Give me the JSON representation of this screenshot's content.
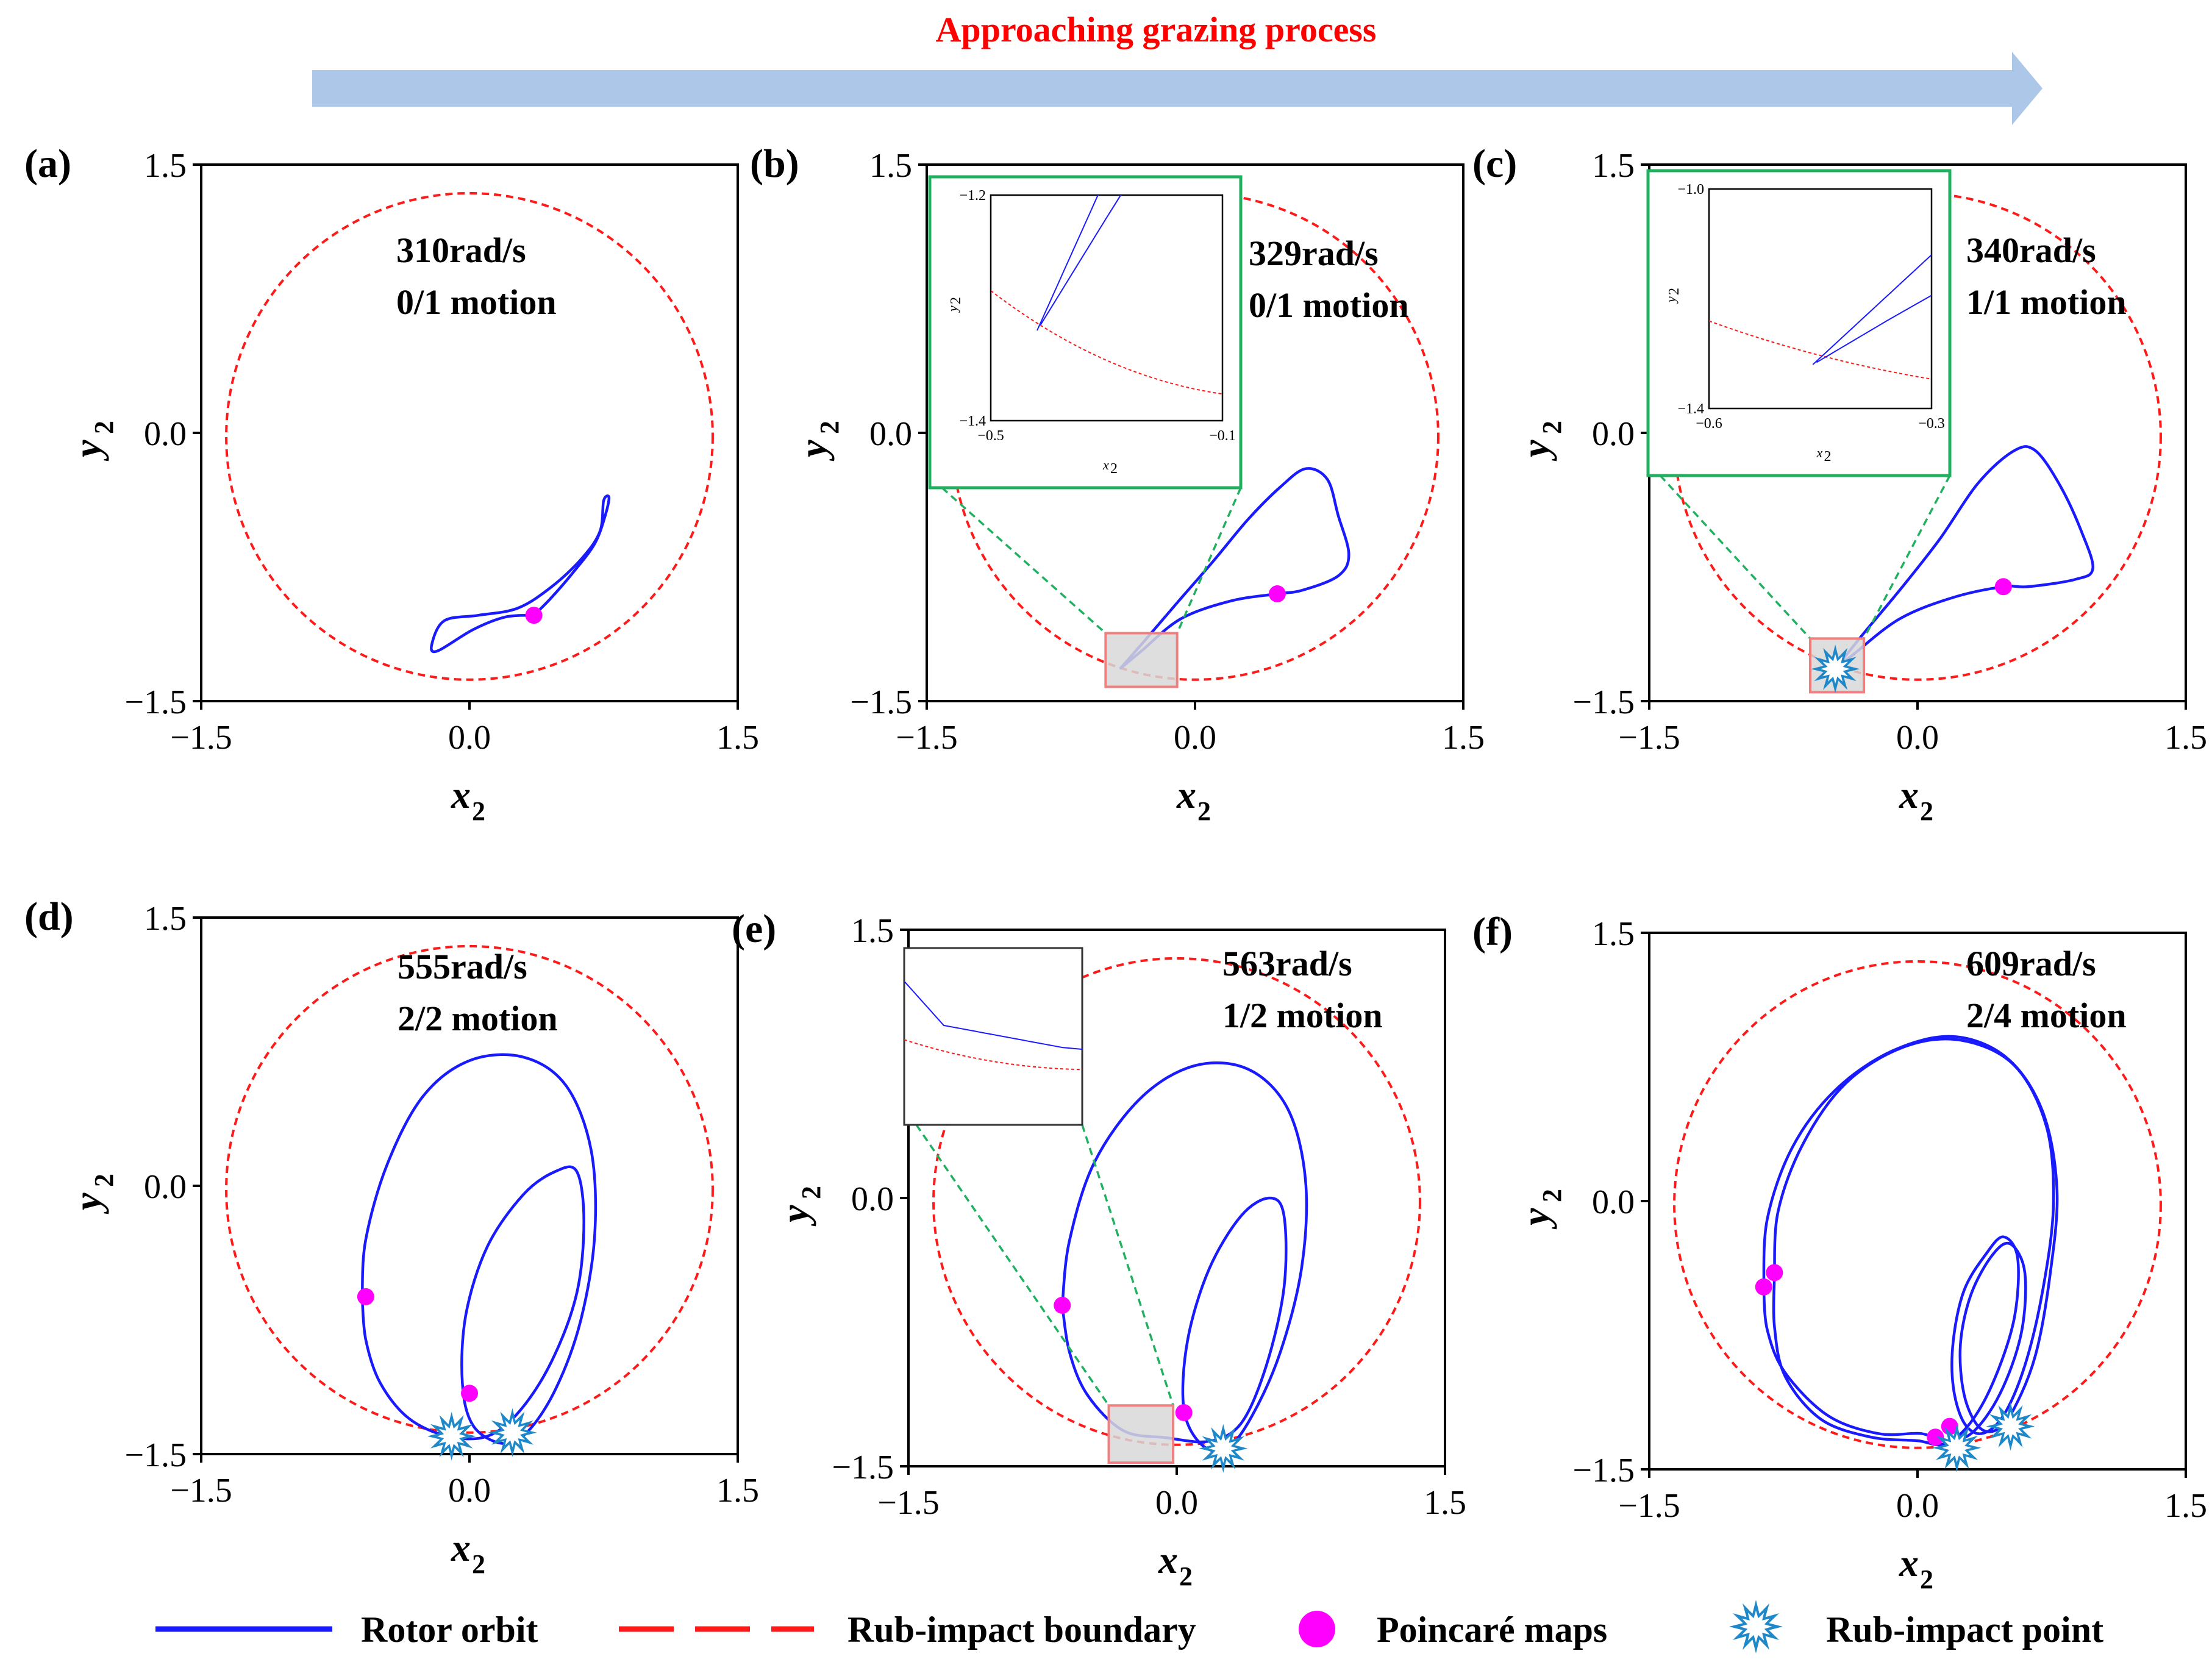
{
  "header": {
    "title": "Approaching grazing process"
  },
  "colors": {
    "orbit": "#1a1aff",
    "boundary": "#ff1a1a",
    "poincare": "#ff00ff",
    "impact": "#1e88c8",
    "arrow": "#adc7e8",
    "zoom_green": "#20b060",
    "zoom_red": "#f08080"
  },
  "legend": {
    "orbit": "Rotor orbit",
    "boundary": "Rub-impact boundary",
    "poincare": "Poincaré maps",
    "impact": "Rub-impact point"
  },
  "chart_data": [
    {
      "type": "line",
      "panel": "(a)",
      "speed": "310rad/s",
      "motion": "0/1 motion",
      "xlabel": "x",
      "xlabel_sub": "2",
      "ylabel": "y",
      "ylabel_sub": "2",
      "xlim": [
        -1.5,
        1.5
      ],
      "ylim": [
        -1.5,
        1.5
      ],
      "xticks": [
        "−1.5",
        "0.0",
        "1.5"
      ],
      "yticks": [
        "1.5",
        "0.0",
        "−1.5"
      ],
      "boundary": {
        "cx": 0.0,
        "cy": -0.02,
        "r": 1.36
      },
      "orbit": [
        [
          0.36,
          -1.02
        ],
        [
          0.45,
          -0.93
        ],
        [
          0.58,
          -0.78
        ],
        [
          0.7,
          -0.62
        ],
        [
          0.76,
          -0.46
        ],
        [
          0.78,
          -0.36
        ],
        [
          0.75,
          -0.38
        ],
        [
          0.73,
          -0.55
        ],
        [
          0.63,
          -0.7
        ],
        [
          0.46,
          -0.86
        ],
        [
          0.27,
          -0.98
        ],
        [
          0.05,
          -1.02
        ],
        [
          -0.14,
          -1.05
        ],
        [
          -0.21,
          -1.18
        ],
        [
          -0.18,
          -1.22
        ],
        [
          0.02,
          -1.1
        ],
        [
          0.2,
          -1.03
        ],
        [
          0.36,
          -1.02
        ]
      ],
      "poincare": [
        [
          0.36,
          -1.02
        ]
      ],
      "impacts": []
    },
    {
      "type": "line",
      "panel": "(b)",
      "speed": "329rad/s",
      "motion": "0/1 motion",
      "xlabel": "x",
      "xlabel_sub": "2",
      "ylabel": "y",
      "ylabel_sub": "2",
      "xlim": [
        -1.5,
        1.5
      ],
      "ylim": [
        -1.5,
        1.5
      ],
      "xticks": [
        "−1.5",
        "0.0",
        "1.5"
      ],
      "yticks": [
        "1.5",
        "0.0",
        "−1.5"
      ],
      "boundary": {
        "cx": 0.0,
        "cy": -0.02,
        "r": 1.36
      },
      "orbit": [
        [
          -0.42,
          -1.32
        ],
        [
          -0.28,
          -1.16
        ],
        [
          -0.1,
          -0.95
        ],
        [
          0.1,
          -0.72
        ],
        [
          0.3,
          -0.48
        ],
        [
          0.48,
          -0.3
        ],
        [
          0.62,
          -0.2
        ],
        [
          0.74,
          -0.26
        ],
        [
          0.8,
          -0.46
        ],
        [
          0.86,
          -0.68
        ],
        [
          0.8,
          -0.8
        ],
        [
          0.6,
          -0.88
        ],
        [
          0.46,
          -0.9
        ],
        [
          0.2,
          -0.94
        ],
        [
          -0.08,
          -1.04
        ],
        [
          -0.3,
          -1.22
        ],
        [
          -0.42,
          -1.32
        ]
      ],
      "poincare": [
        [
          0.46,
          -0.9
        ]
      ],
      "impacts": [],
      "zoom_box": {
        "x": [
          -0.5,
          -0.1
        ],
        "y": [
          -1.42,
          -1.12
        ]
      },
      "inset": {
        "frame": "green",
        "xlim": [
          -0.5,
          -0.1
        ],
        "ylim": [
          -1.4,
          -1.2
        ],
        "xticks": [
          "−0.5",
          "−0.1"
        ],
        "yticks": [
          "−1.2",
          "−1.4"
        ],
        "xlabel": "x",
        "xlabel_sub": "2",
        "ylabel": "y",
        "ylabel_sub": "2"
      }
    },
    {
      "type": "line",
      "panel": "(c)",
      "speed": "340rad/s",
      "motion": "1/1 motion",
      "xlabel": "x",
      "xlabel_sub": "2",
      "ylabel": "y",
      "ylabel_sub": "2",
      "xlim": [
        -1.5,
        1.5
      ],
      "ylim": [
        -1.5,
        1.5
      ],
      "xticks": [
        "−1.5",
        "0.0",
        "1.5"
      ],
      "yticks": [
        "1.5",
        "0.0",
        "−1.5"
      ],
      "boundary": {
        "cx": 0.0,
        "cy": -0.02,
        "r": 1.36
      },
      "orbit": [
        [
          -0.46,
          -1.32
        ],
        [
          -0.3,
          -1.12
        ],
        [
          -0.1,
          -0.88
        ],
        [
          0.12,
          -0.6
        ],
        [
          0.34,
          -0.28
        ],
        [
          0.54,
          -0.1
        ],
        [
          0.66,
          -0.1
        ],
        [
          0.8,
          -0.3
        ],
        [
          0.92,
          -0.56
        ],
        [
          0.98,
          -0.76
        ],
        [
          0.88,
          -0.82
        ],
        [
          0.62,
          -0.86
        ],
        [
          0.48,
          -0.86
        ],
        [
          0.2,
          -0.92
        ],
        [
          -0.1,
          -1.04
        ],
        [
          -0.36,
          -1.24
        ],
        [
          -0.46,
          -1.32
        ]
      ],
      "poincare": [
        [
          0.48,
          -0.86
        ]
      ],
      "impacts": [
        [
          -0.46,
          -1.32
        ]
      ],
      "zoom_box": {
        "x": [
          -0.6,
          -0.3
        ],
        "y": [
          -1.45,
          -1.15
        ]
      },
      "inset": {
        "frame": "green",
        "xlim": [
          -0.6,
          -0.3
        ],
        "ylim": [
          -1.4,
          -1.0
        ],
        "xticks": [
          "−0.6",
          "−0.3"
        ],
        "yticks": [
          "−1.0",
          "−1.4"
        ],
        "xlabel": "x",
        "xlabel_sub": "2",
        "ylabel": "y",
        "ylabel_sub": "2"
      }
    },
    {
      "type": "line",
      "panel": "(d)",
      "speed": "555rad/s",
      "motion": "2/2 motion",
      "xlabel": "x",
      "xlabel_sub": "2",
      "ylabel": "y",
      "ylabel_sub": "2",
      "xlim": [
        -1.5,
        1.5
      ],
      "ylim": [
        -1.5,
        1.5
      ],
      "xticks": [
        "−1.5",
        "0.0",
        "1.5"
      ],
      "yticks": [
        "1.5",
        "0.0",
        "−1.5"
      ],
      "boundary": {
        "cx": 0.0,
        "cy": -0.02,
        "r": 1.36
      },
      "orbit": [
        [
          -0.6,
          -0.62
        ],
        [
          -0.58,
          -0.3
        ],
        [
          -0.46,
          0.12
        ],
        [
          -0.26,
          0.5
        ],
        [
          0.0,
          0.7
        ],
        [
          0.3,
          0.72
        ],
        [
          0.54,
          0.56
        ],
        [
          0.68,
          0.2
        ],
        [
          0.7,
          -0.28
        ],
        [
          0.62,
          -0.76
        ],
        [
          0.48,
          -1.14
        ],
        [
          0.32,
          -1.38
        ],
        [
          0.18,
          -1.44
        ],
        [
          0.02,
          -1.34
        ],
        [
          -0.04,
          -1.1
        ],
        [
          -0.02,
          -0.72
        ],
        [
          0.1,
          -0.34
        ],
        [
          0.3,
          -0.05
        ],
        [
          0.48,
          0.08
        ],
        [
          0.6,
          0.08
        ],
        [
          0.64,
          -0.2
        ],
        [
          0.6,
          -0.6
        ],
        [
          0.46,
          -0.98
        ],
        [
          0.28,
          -1.26
        ],
        [
          0.1,
          -1.4
        ],
        [
          -0.12,
          -1.4
        ],
        [
          -0.34,
          -1.3
        ],
        [
          -0.5,
          -1.1
        ],
        [
          -0.58,
          -0.86
        ],
        [
          -0.6,
          -0.62
        ]
      ],
      "poincare": [
        [
          -0.58,
          -0.62
        ],
        [
          0.0,
          -1.16
        ]
      ],
      "impacts": [
        [
          -0.1,
          -1.4
        ],
        [
          0.24,
          -1.38
        ]
      ]
    },
    {
      "type": "line",
      "panel": "(e)",
      "speed": "563rad/s",
      "motion": "1/2 motion",
      "xlabel": "x",
      "xlabel_sub": "2",
      "ylabel": "y",
      "ylabel_sub": "2",
      "xlim": [
        -1.5,
        1.5
      ],
      "ylim": [
        -1.5,
        1.5
      ],
      "xticks": [
        "−1.5",
        "0.0",
        "1.5"
      ],
      "yticks": [
        "1.5",
        "0.0",
        "−1.5"
      ],
      "boundary": {
        "cx": 0.0,
        "cy": -0.02,
        "r": 1.36
      },
      "orbit": [
        [
          -0.64,
          -0.6
        ],
        [
          -0.6,
          -0.24
        ],
        [
          -0.46,
          0.2
        ],
        [
          -0.2,
          0.56
        ],
        [
          0.1,
          0.74
        ],
        [
          0.4,
          0.72
        ],
        [
          0.62,
          0.5
        ],
        [
          0.72,
          0.1
        ],
        [
          0.7,
          -0.38
        ],
        [
          0.58,
          -0.86
        ],
        [
          0.42,
          -1.22
        ],
        [
          0.28,
          -1.4
        ],
        [
          0.14,
          -1.38
        ],
        [
          0.04,
          -1.18
        ],
        [
          0.06,
          -0.8
        ],
        [
          0.18,
          -0.4
        ],
        [
          0.36,
          -0.1
        ],
        [
          0.52,
          0.0
        ],
        [
          0.6,
          -0.1
        ],
        [
          0.6,
          -0.5
        ],
        [
          0.5,
          -0.94
        ],
        [
          0.36,
          -1.26
        ],
        [
          0.18,
          -1.36
        ],
        [
          -0.06,
          -1.34
        ],
        [
          -0.3,
          -1.3
        ],
        [
          -0.5,
          -1.1
        ],
        [
          -0.6,
          -0.86
        ],
        [
          -0.64,
          -0.6
        ]
      ],
      "poincare": [
        [
          -0.64,
          -0.6
        ],
        [
          0.04,
          -1.2
        ]
      ],
      "impacts": [
        [
          0.26,
          -1.4
        ]
      ],
      "zoom_box": {
        "x": [
          -0.38,
          -0.02
        ],
        "y": [
          -1.48,
          -1.16
        ]
      },
      "inset": {
        "frame": "gray",
        "xlim": [
          -0.38,
          -0.02
        ],
        "ylim": [
          -1.48,
          -1.16
        ],
        "xticks": [],
        "yticks": [],
        "xlabel": "",
        "xlabel_sub": "",
        "ylabel": "",
        "ylabel_sub": ""
      }
    },
    {
      "type": "line",
      "panel": "(f)",
      "speed": "609rad/s",
      "motion": "2/4 motion",
      "xlabel": "x",
      "xlabel_sub": "2",
      "ylabel": "y",
      "ylabel_sub": "2",
      "xlim": [
        -1.5,
        1.5
      ],
      "ylim": [
        -1.5,
        1.5
      ],
      "xticks": [
        "−1.5",
        "0.0",
        "1.5"
      ],
      "yticks": [
        "1.5",
        "0.0",
        "−1.5"
      ],
      "boundary": {
        "cx": 0.0,
        "cy": -0.02,
        "r": 1.36
      },
      "orbit": [
        [
          -0.86,
          -0.48
        ],
        [
          -0.84,
          -0.1
        ],
        [
          -0.7,
          0.3
        ],
        [
          -0.46,
          0.62
        ],
        [
          -0.14,
          0.84
        ],
        [
          0.2,
          0.92
        ],
        [
          0.5,
          0.8
        ],
        [
          0.7,
          0.5
        ],
        [
          0.78,
          0.06
        ],
        [
          0.74,
          -0.42
        ],
        [
          0.66,
          -0.86
        ],
        [
          0.54,
          -1.16
        ],
        [
          0.44,
          -1.28
        ],
        [
          0.34,
          -1.26
        ],
        [
          0.26,
          -1.08
        ],
        [
          0.24,
          -0.8
        ],
        [
          0.3,
          -0.52
        ],
        [
          0.42,
          -0.3
        ],
        [
          0.52,
          -0.24
        ],
        [
          0.6,
          -0.4
        ],
        [
          0.58,
          -0.74
        ],
        [
          0.46,
          -1.08
        ],
        [
          0.3,
          -1.3
        ],
        [
          0.14,
          -1.34
        ],
        [
          0.02,
          -1.3
        ],
        [
          -0.22,
          -1.3
        ],
        [
          -0.5,
          -1.2
        ],
        [
          -0.74,
          -0.96
        ],
        [
          -0.84,
          -0.72
        ],
        [
          -0.86,
          -0.48
        ]
      ],
      "orbit2": [
        [
          -0.8,
          -0.42
        ],
        [
          -0.78,
          -0.06
        ],
        [
          -0.64,
          0.32
        ],
        [
          -0.4,
          0.66
        ],
        [
          -0.08,
          0.86
        ],
        [
          0.24,
          0.9
        ],
        [
          0.54,
          0.76
        ],
        [
          0.72,
          0.42
        ],
        [
          0.76,
          -0.02
        ],
        [
          0.7,
          -0.5
        ],
        [
          0.6,
          -0.92
        ],
        [
          0.48,
          -1.2
        ],
        [
          0.36,
          -1.3
        ],
        [
          0.26,
          -1.24
        ],
        [
          0.2,
          -1.04
        ],
        [
          0.2,
          -0.78
        ],
        [
          0.26,
          -0.5
        ],
        [
          0.38,
          -0.3
        ],
        [
          0.48,
          -0.2
        ],
        [
          0.56,
          -0.32
        ],
        [
          0.54,
          -0.66
        ],
        [
          0.42,
          -1.02
        ],
        [
          0.28,
          -1.26
        ],
        [
          0.14,
          -1.36
        ],
        [
          0.0,
          -1.34
        ],
        [
          -0.26,
          -1.32
        ],
        [
          -0.54,
          -1.22
        ],
        [
          -0.74,
          -0.98
        ],
        [
          -0.8,
          -0.7
        ],
        [
          -0.8,
          -0.42
        ]
      ],
      "poincare": [
        [
          -0.86,
          -0.48
        ],
        [
          -0.8,
          -0.4
        ],
        [
          0.18,
          -1.26
        ],
        [
          0.1,
          -1.32
        ]
      ],
      "impacts": [
        [
          0.22,
          -1.38
        ],
        [
          0.52,
          -1.26
        ]
      ]
    }
  ]
}
